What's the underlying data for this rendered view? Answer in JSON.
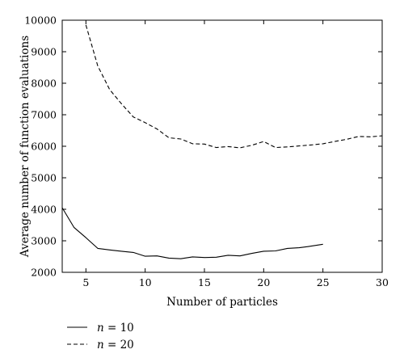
{
  "chart_data": {
    "type": "line",
    "title": "",
    "xlabel": "Number of particles",
    "ylabel": "Average number of function evaluations",
    "xlim": [
      3,
      30
    ],
    "ylim": [
      2000,
      10000
    ],
    "xticks": [
      5,
      10,
      15,
      20,
      25,
      30
    ],
    "yticks": [
      2000,
      3000,
      4000,
      5000,
      6000,
      7000,
      8000,
      9000,
      10000
    ],
    "grid": false,
    "legend_position": "bottom-left, below plot",
    "series": [
      {
        "name": "n = 10",
        "name_var": "n",
        "name_rest": " = 10",
        "line_style": "solid",
        "x": [
          3,
          4,
          5,
          6,
          7,
          8,
          9,
          10,
          11,
          12,
          13,
          14,
          15,
          16,
          17,
          18,
          19,
          20,
          21,
          22,
          23,
          24,
          25
        ],
        "y": [
          4050,
          3420,
          3100,
          2760,
          2710,
          2670,
          2630,
          2510,
          2520,
          2450,
          2430,
          2490,
          2470,
          2480,
          2540,
          2520,
          2600,
          2670,
          2680,
          2760,
          2780,
          2830,
          2890
        ]
      },
      {
        "name": "n = 20",
        "name_var": "n",
        "name_rest": " = 20",
        "line_style": "dashed",
        "x": [
          5,
          6,
          7,
          8,
          9,
          10,
          11,
          12,
          13,
          14,
          15,
          16,
          17,
          18,
          19,
          20,
          21,
          22,
          23,
          24,
          25,
          26,
          27,
          28,
          29,
          30
        ],
        "y": [
          9850,
          8550,
          7800,
          7350,
          6930,
          6750,
          6550,
          6270,
          6230,
          6080,
          6070,
          5960,
          5990,
          5950,
          6030,
          6150,
          5960,
          5980,
          6010,
          6040,
          6080,
          6150,
          6220,
          6310,
          6300,
          6330
        ]
      }
    ]
  }
}
